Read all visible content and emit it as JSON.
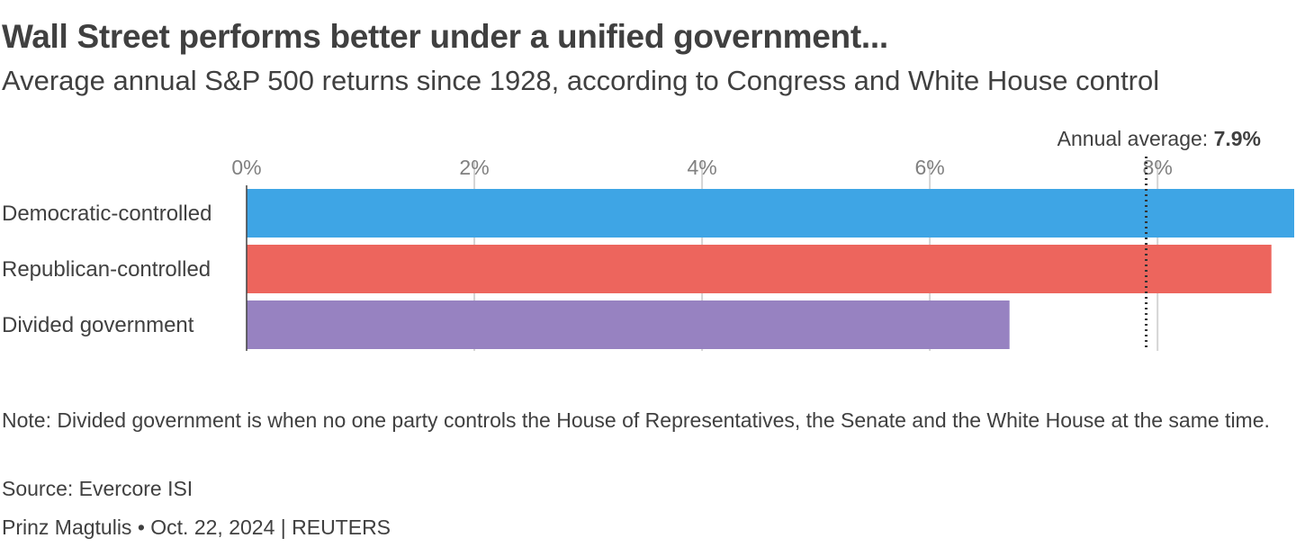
{
  "header": {
    "title": "Wall Street performs better under a unified government...",
    "subtitle": "Average annual S&P 500 returns since 1928, according to Congress and White House control"
  },
  "chart_data": {
    "type": "bar",
    "orientation": "horizontal",
    "categories": [
      "Democratic-controlled",
      "Republican-controlled",
      "Divided government"
    ],
    "values": [
      9.2,
      9.0,
      6.7
    ],
    "colors": [
      "#3ea5e5",
      "#ed655d",
      "#9782c1"
    ],
    "xlim": [
      0,
      9.2
    ],
    "xticks": [
      0,
      2,
      4,
      6,
      8
    ],
    "xtick_labels": [
      "0%",
      "2%",
      "4%",
      "6%",
      "8%"
    ],
    "reference_line": {
      "value": 7.9,
      "label": "Annual average:",
      "value_label": "7.9%",
      "style": "dotted"
    },
    "grid": true
  },
  "footer": {
    "note": "Note: Divided government is when no one party controls the House of Representatives, the Senate and the White House at the same time.",
    "source": "Source: Evercore ISI",
    "credit": "Prinz Magtulis • Oct. 22, 2024 | REUTERS"
  }
}
